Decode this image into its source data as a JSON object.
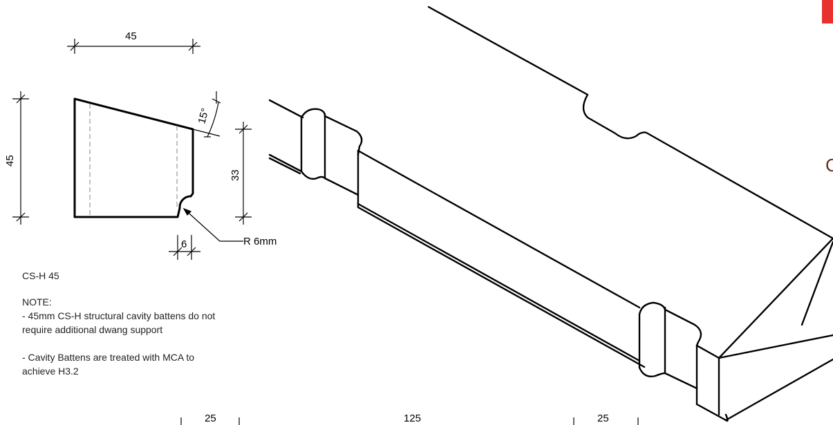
{
  "profile": {
    "width_dim": "45",
    "height_dim": "45",
    "angle_dim": "15°",
    "right_height_dim": "33",
    "notch_dim": "6",
    "radius_label": "R 6mm"
  },
  "bottom_dims": {
    "left": "25",
    "middle": "125",
    "right": "25"
  },
  "notes": {
    "product_code": "CS-H 45",
    "heading": "NOTE:",
    "line1a": "- 45mm CS-H structural cavity battens do not",
    "line1b": "require additional dwang support",
    "line2a": "- Cavity Battens are treated with MCA to",
    "line2b": "achieve H3.2"
  },
  "edge_text": {
    "fragment": "C"
  },
  "colors": {
    "accent": "#e8312f",
    "line": "#000000",
    "hidden_line": "#9a9a9a"
  }
}
